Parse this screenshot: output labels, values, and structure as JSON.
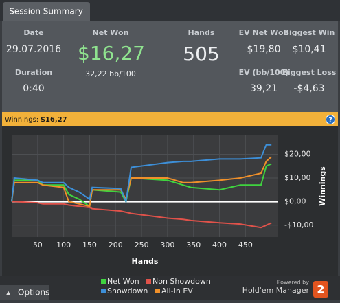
{
  "tab": "Session Summary",
  "stats": {
    "date": {
      "label": "Date",
      "value": "29.07.2016"
    },
    "duration": {
      "label": "Duration",
      "value": "0:40"
    },
    "net_won": {
      "label": "Net Won",
      "value": "$16,27",
      "sub": "32,22 bb/100"
    },
    "hands": {
      "label": "Hands",
      "value": "505"
    },
    "ev_net_won": {
      "label": "EV Net Won",
      "value": "$19,80"
    },
    "ev_bb": {
      "label": "EV (bb/100)",
      "value": "39,21"
    },
    "biggest_win": {
      "label": "Biggest Win",
      "value": "$10,41"
    },
    "biggest_loss": {
      "label": "Biggest Loss",
      "value": "-$4,63"
    }
  },
  "winnings_bar": {
    "label": "Winnings:",
    "value": "$16,27",
    "help": "?"
  },
  "chart_data": {
    "type": "line",
    "xlabel": "Hands",
    "ylabel": "Winnings",
    "x": [
      0,
      5,
      50,
      60,
      100,
      110,
      130,
      150,
      155,
      210,
      220,
      230,
      300,
      330,
      345,
      400,
      440,
      480,
      490,
      500
    ],
    "series": [
      {
        "name": "Net Won",
        "color": "#3fd33f",
        "values": [
          0,
          9,
          9,
          7,
          7,
          3,
          1,
          -2,
          5,
          4,
          0,
          10,
          9,
          7,
          6,
          5,
          7,
          7,
          15,
          16
        ]
      },
      {
        "name": "Non Showdown",
        "color": "#e0524a",
        "values": [
          0,
          0,
          -0.5,
          -1,
          -1,
          -1.5,
          -2,
          -2.5,
          -3,
          -4,
          -4.5,
          -5,
          -7,
          -7.5,
          -8,
          -9,
          -9.5,
          -11,
          -10,
          -9
        ]
      },
      {
        "name": "Showdown",
        "color": "#3d8fd8",
        "values": [
          0,
          10,
          9,
          8,
          8,
          6,
          4,
          1,
          6,
          5.5,
          0,
          14.5,
          16.5,
          17,
          17,
          18,
          18,
          18.5,
          24,
          24
        ]
      },
      {
        "name": "All-In EV",
        "color": "#f0902a",
        "values": [
          0,
          8,
          8,
          7,
          6,
          0,
          -1,
          -2,
          5,
          5,
          1,
          10,
          10,
          8,
          8,
          9,
          10,
          12,
          17,
          19
        ]
      }
    ],
    "xlim": [
      0,
      513
    ],
    "ylim": [
      -15,
      28
    ],
    "xticks": [
      50,
      100,
      150,
      200,
      250,
      300,
      350,
      400,
      450
    ],
    "yticks": [
      {
        "value": -10,
        "label": "-$10,00"
      },
      {
        "value": 0,
        "label": "$0,00"
      },
      {
        "value": 10,
        "label": "$10,00"
      },
      {
        "value": 20,
        "label": "$20,00"
      }
    ],
    "grid": true
  },
  "footer": {
    "options": "Options",
    "powered_by": "Powered by",
    "brand": "Hold'em Manager",
    "logo": "2"
  }
}
